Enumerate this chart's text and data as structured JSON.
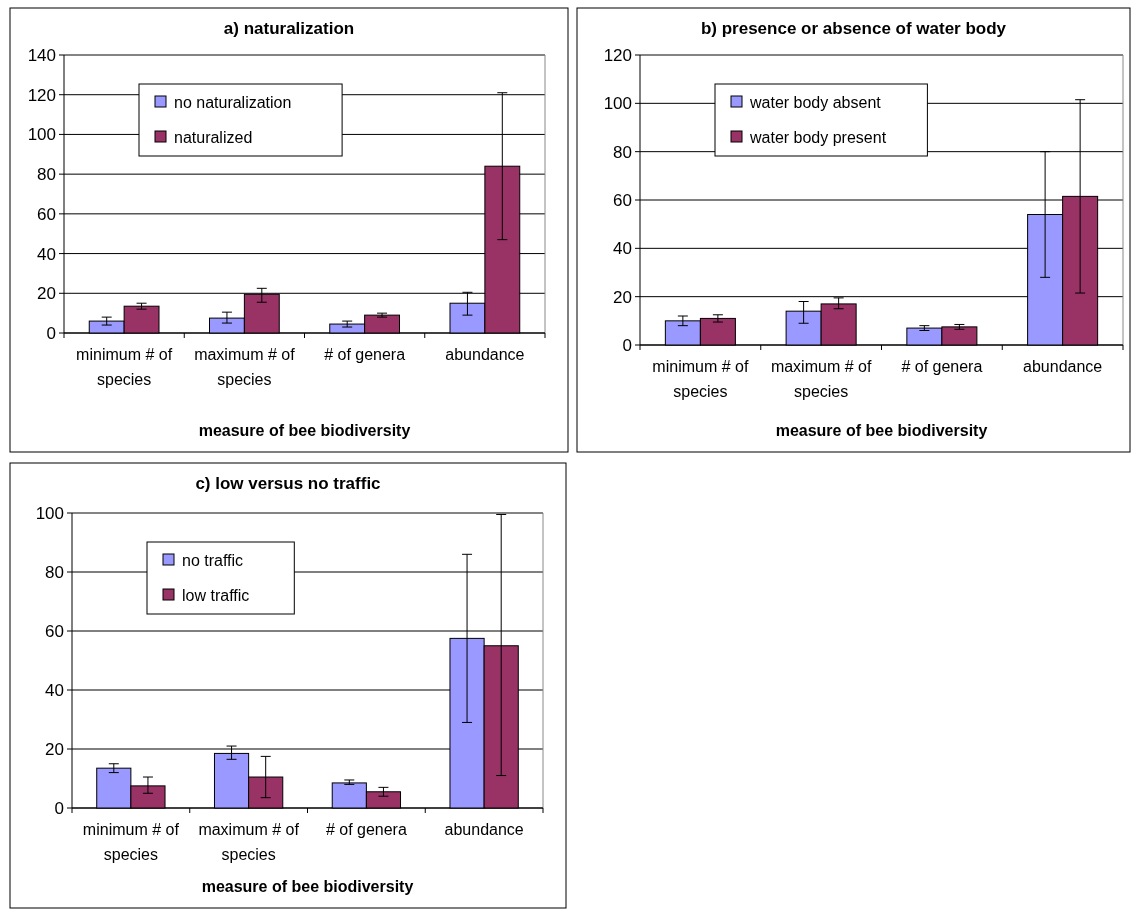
{
  "chart_data": [
    {
      "type": "bar",
      "title": "a) naturalization",
      "xlabel": "measure of bee biodiversity",
      "categories": [
        "minimum # of species",
        "maximum # of species",
        "# of genera",
        "abundance"
      ],
      "series": [
        {
          "name": "no naturalization",
          "color": "#9999ff",
          "values": [
            6,
            7.5,
            4.5,
            15
          ],
          "errors": [
            [
              4,
              8
            ],
            [
              5,
              10.5
            ],
            [
              3,
              6
            ],
            [
              9,
              20.5
            ]
          ]
        },
        {
          "name": "naturalized",
          "color": "#993366",
          "values": [
            13.5,
            19.5,
            9,
            84
          ],
          "errors": [
            [
              12,
              15
            ],
            [
              15.5,
              22.5
            ],
            [
              8,
              10
            ],
            [
              47,
              121
            ]
          ]
        }
      ],
      "ylim": [
        0,
        140
      ],
      "yticks": [
        0,
        20,
        40,
        60,
        80,
        100,
        120,
        140
      ],
      "grid": "y",
      "legend": "top left"
    },
    {
      "type": "bar",
      "title": "b) presence or absence of water body",
      "xlabel": "measure of bee biodiversity",
      "categories": [
        "minimum # of species",
        "maximum # of species",
        "# of genera",
        "abundance"
      ],
      "series": [
        {
          "name": "water body absent",
          "color": "#9999ff",
          "values": [
            10,
            14,
            7,
            54
          ],
          "errors": [
            [
              8,
              12
            ],
            [
              9,
              18
            ],
            [
              6,
              8
            ],
            [
              28,
              80
            ]
          ]
        },
        {
          "name": "water body present",
          "color": "#993366",
          "values": [
            11,
            17,
            7.5,
            61.5
          ],
          "errors": [
            [
              9.5,
              12.5
            ],
            [
              15,
              19.5
            ],
            [
              6.5,
              8.5
            ],
            [
              21.5,
              101.5
            ]
          ]
        }
      ],
      "ylim": [
        0,
        120
      ],
      "yticks": [
        0,
        20,
        40,
        60,
        80,
        100,
        120
      ],
      "grid": "y",
      "legend": "top left"
    },
    {
      "type": "bar",
      "title": "c) low versus no traffic",
      "xlabel": "measure of bee biodiversity",
      "categories": [
        "minimum # of species",
        "maximum # of species",
        "# of genera",
        "abundance"
      ],
      "series": [
        {
          "name": "no traffic",
          "color": "#9999ff",
          "values": [
            13.5,
            18.5,
            8.5,
            57.5
          ],
          "errors": [
            [
              12,
              15
            ],
            [
              16.5,
              21
            ],
            [
              8,
              9.5
            ],
            [
              29,
              86
            ]
          ]
        },
        {
          "name": "low traffic",
          "color": "#993366",
          "values": [
            7.5,
            10.5,
            5.5,
            55
          ],
          "errors": [
            [
              5,
              10.5
            ],
            [
              3.5,
              17.5
            ],
            [
              4,
              7
            ],
            [
              11,
              99.5
            ]
          ]
        }
      ],
      "ylim": [
        0,
        100
      ],
      "yticks": [
        0,
        20,
        40,
        60,
        80,
        100
      ],
      "grid": "y",
      "legend": "top left"
    }
  ]
}
